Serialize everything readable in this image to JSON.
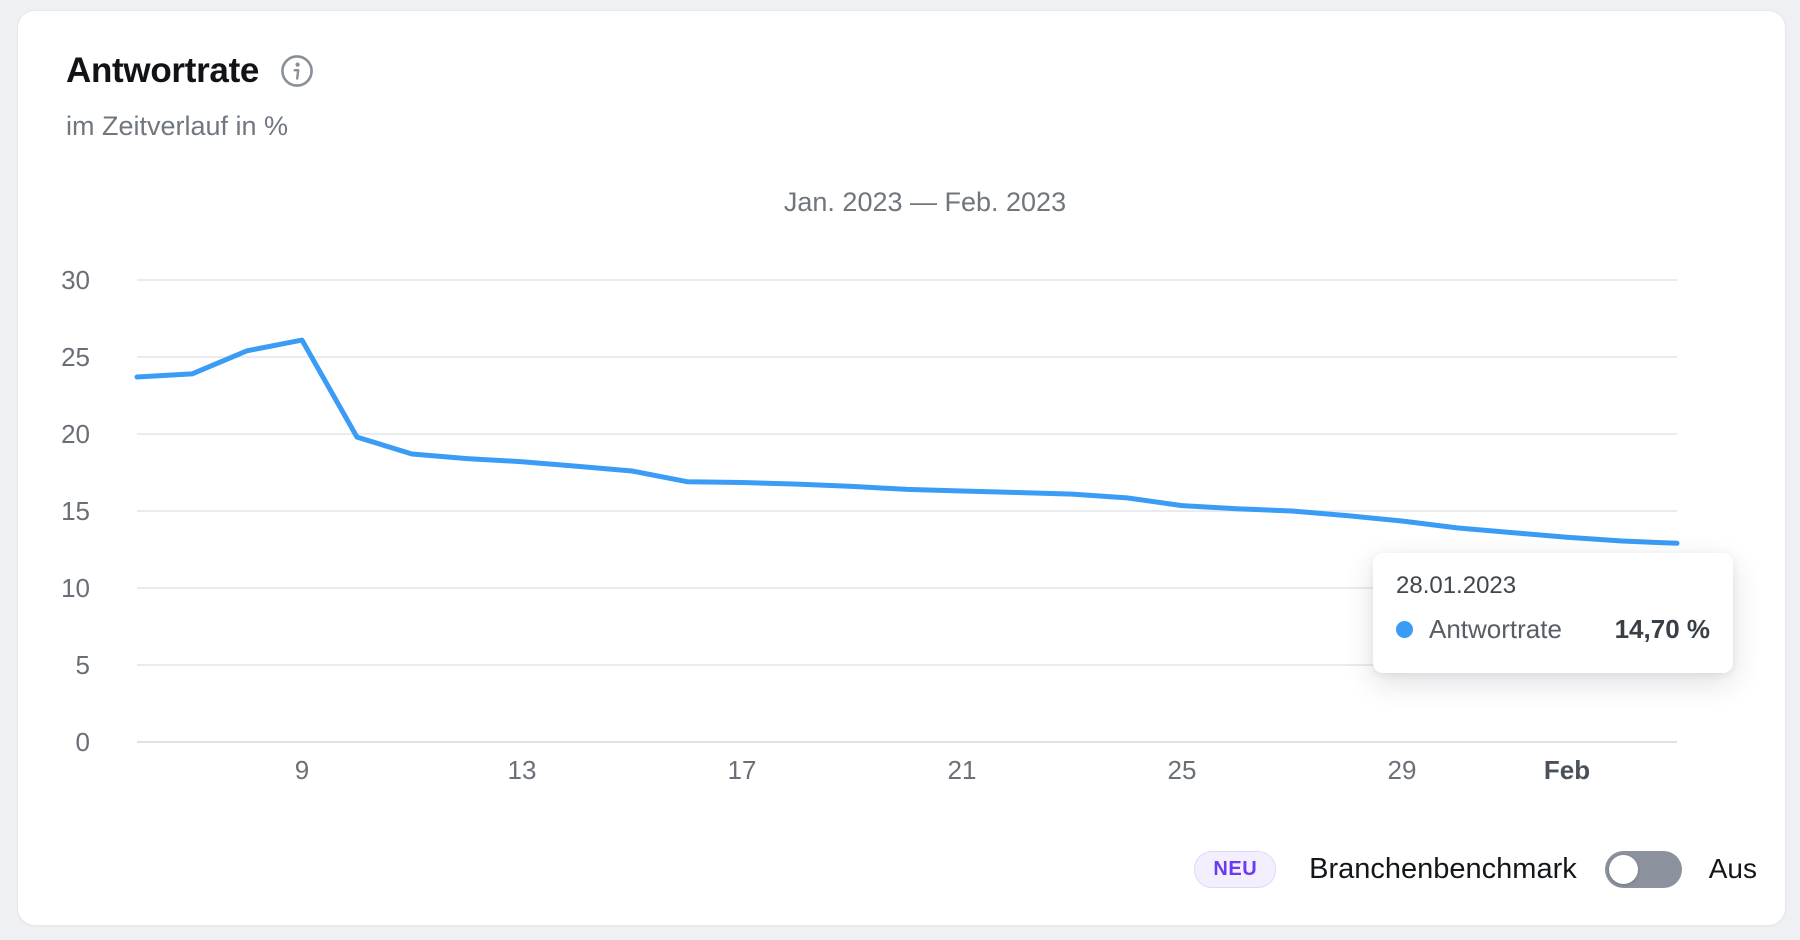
{
  "card": {
    "title": "Antwortrate",
    "subtitle": "im Zeitverlauf in %"
  },
  "chart_data": {
    "type": "line",
    "title": "Jan. 2023 — Feb. 2023",
    "xlabel": "",
    "ylabel": "",
    "grid": true,
    "x_axis": {
      "range_days": [
        6,
        34
      ],
      "note": "day index within period 06.01.2023 - 03.02.2023 (32-34 = Feb 1-3)",
      "ticks": [
        {
          "day": 9,
          "label": "9",
          "bold": false
        },
        {
          "day": 13,
          "label": "13",
          "bold": false
        },
        {
          "day": 17,
          "label": "17",
          "bold": false
        },
        {
          "day": 21,
          "label": "21",
          "bold": false
        },
        {
          "day": 25,
          "label": "25",
          "bold": false
        },
        {
          "day": 29,
          "label": "29",
          "bold": false
        },
        {
          "day": 32,
          "label": "Feb",
          "bold": true
        }
      ]
    },
    "y_axis": {
      "lim": [
        0,
        30
      ],
      "ticks": [
        0,
        5,
        10,
        15,
        20,
        25,
        30
      ]
    },
    "series": [
      {
        "name": "Antwortrate",
        "color": "#3B9CF5",
        "x_days": [
          6,
          7,
          8,
          9,
          10,
          11,
          12,
          13,
          14,
          15,
          16,
          17,
          18,
          19,
          20,
          21,
          22,
          23,
          24,
          25,
          26,
          27,
          28,
          29,
          30,
          31,
          32,
          33,
          34
        ],
        "values": [
          23.7,
          23.9,
          25.4,
          26.1,
          19.8,
          18.7,
          18.4,
          18.2,
          17.9,
          17.6,
          16.9,
          16.85,
          16.75,
          16.6,
          16.4,
          16.3,
          16.2,
          16.1,
          15.85,
          15.35,
          15.15,
          15.0,
          14.7,
          14.35,
          13.9,
          13.6,
          13.3,
          13.05,
          12.9
        ]
      }
    ],
    "highlighted_point": {
      "date": "28.01.2023",
      "value": 14.7
    }
  },
  "tooltip": {
    "date": "28.01.2023",
    "series_label": "Antwortrate",
    "value": "14,70 %",
    "dot_color": "#3B9CF5"
  },
  "footer": {
    "new_badge": "NEU",
    "benchmark_label": "Branchenbenchmark",
    "toggle_state_label": "Aus",
    "toggle_on": false
  },
  "colors": {
    "line": "#3B9CF5",
    "accent_purple": "#6C3BF0",
    "toggle_off": "#8B929D",
    "grid": "#E9EBEE",
    "card_background": "#FFFFFF",
    "page_background": "#EEF0F3"
  },
  "icons": {
    "info": "info-icon",
    "series_dot": "series-dot-icon"
  }
}
